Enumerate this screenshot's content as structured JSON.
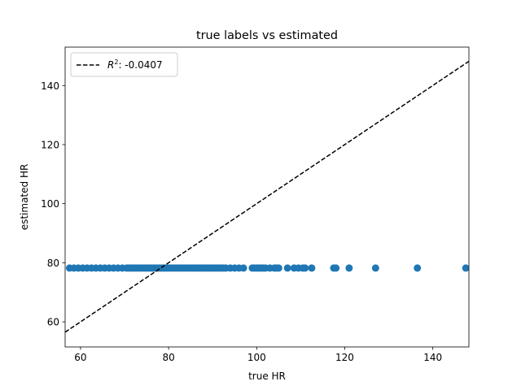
{
  "chart_data": {
    "type": "scatter",
    "title": "true labels vs estimated",
    "xlabel": "true HR",
    "ylabel": "estimated HR",
    "xlim": [
      56.5,
      148.2
    ],
    "ylim": [
      51.5,
      153.0
    ],
    "xticks": [
      60,
      80,
      100,
      120,
      140
    ],
    "yticks": [
      60,
      80,
      100,
      120,
      140
    ],
    "grid": false,
    "legend_placement": "top-left",
    "series": [
      {
        "kind": "scatter",
        "color": "#1f77b4",
        "x": [
          57.5,
          58.5,
          59.5,
          60.5,
          61.5,
          62.5,
          63.5,
          64.5,
          65.5,
          66.5,
          67.5,
          68.5,
          69.5,
          70.5,
          71.0,
          71.5,
          72.0,
          72.5,
          73.0,
          73.5,
          74.0,
          74.5,
          75.0,
          75.5,
          76.0,
          76.5,
          77.0,
          77.5,
          78.0,
          78.5,
          79.0,
          79.5,
          80.0,
          80.5,
          81.0,
          81.5,
          82.0,
          82.5,
          83.0,
          83.5,
          84.0,
          84.5,
          85.0,
          85.5,
          86.0,
          86.5,
          87.0,
          87.5,
          88.0,
          88.5,
          89.0,
          89.5,
          90.0,
          90.5,
          91.0,
          91.5,
          92.0,
          92.5,
          93.0,
          94.0,
          95.0,
          96.0,
          97.0,
          99.0,
          99.5,
          100.0,
          100.5,
          101.0,
          101.5,
          102.0,
          103.0,
          104.0,
          104.5,
          105.0,
          107.0,
          108.5,
          109.5,
          110.5,
          111.0,
          112.5,
          117.5,
          118.0,
          121.0,
          127.0,
          136.5,
          147.5
        ],
        "y": [
          78.2,
          78.2,
          78.2,
          78.2,
          78.2,
          78.2,
          78.2,
          78.2,
          78.2,
          78.2,
          78.2,
          78.2,
          78.2,
          78.2,
          78.2,
          78.2,
          78.2,
          78.2,
          78.2,
          78.2,
          78.2,
          78.2,
          78.2,
          78.2,
          78.2,
          78.2,
          78.2,
          78.2,
          78.2,
          78.2,
          78.2,
          78.2,
          78.2,
          78.2,
          78.2,
          78.2,
          78.2,
          78.2,
          78.2,
          78.2,
          78.2,
          78.2,
          78.2,
          78.2,
          78.2,
          78.2,
          78.2,
          78.2,
          78.2,
          78.2,
          78.2,
          78.2,
          78.2,
          78.2,
          78.2,
          78.2,
          78.2,
          78.2,
          78.2,
          78.2,
          78.2,
          78.2,
          78.2,
          78.2,
          78.2,
          78.2,
          78.2,
          78.2,
          78.2,
          78.2,
          78.2,
          78.2,
          78.2,
          78.2,
          78.2,
          78.2,
          78.2,
          78.2,
          78.2,
          78.2,
          78.2,
          78.2,
          78.2,
          78.2,
          78.2,
          78.2
        ]
      },
      {
        "kind": "line",
        "name_prefix": "R",
        "name_sup": "2",
        "name_suffix": ": -0.0407",
        "color": "#000000",
        "dash": "dashed",
        "x": [
          56.5,
          148.2
        ],
        "y": [
          56.5,
          148.2
        ]
      }
    ]
  }
}
